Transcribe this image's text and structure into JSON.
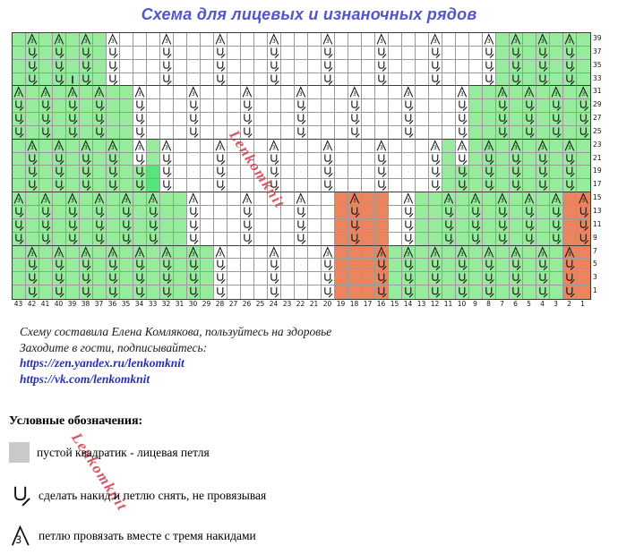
{
  "title": "Схема для лицевых и изнаночных рядов",
  "watermark_text": "Lenkomknit",
  "grid": {
    "code_map": {
      ".": "white empty",
      "g": "green empty",
      "G": "bright-green empty",
      "o": "orange empty",
      "A": "white knit3tog-symbol",
      "B": "green knit3tog-symbol",
      "C": "orange knit3tog-symbol",
      "U": "white yo-slip-symbol",
      "V": "green yo-slip-symbol",
      "W": "orange yo-slip-symbol",
      "I": "green vertical-bar-mark"
    },
    "rows": [
      "gBgBgBgA...A...A...A...A...A...A...AgBgBgBg",
      "gVgVgVgU...U...U...U...U...U...U...UgVgVgVg",
      "gVgVgVgU...U...U...U...U...U...U...UgVgVgVg",
      "gVgVIVgU...U...U...U...U...U...U...UgVgVgVg",
      "BgBgBgBggA...A...A...A...A...A...AggBgBgBgB",
      "VgVgVgVggU...U...U...U...U...U...UggVgVgVgV",
      "VgVgVgVggU...U...U...U...U...U...UggVgVgVgV",
      "VgVgVgVggU...U...U...U...U...U...UggVgVgVgV",
      "gBgBgBgBgAgA...A...A...A...A...AgAgBgBgBgBg",
      "gVgVgVgVgUgU...U...U...U...U...UgUgVgVgVgVg",
      "gVgVgVgVgVGU...U...U...U...U...UgVgVgVgVgVg",
      "gVgVgVgVgVGU...U...U...U...U...UgVgVgVgVgVg",
      "BgBgBgBgBgBggA...A...A..oCoo.AggBgBgBgBgBoC",
      "VgVgVgVgVgVggU...U...U..oWoo.UggVgVgVgVgVoW",
      "VgVgVgVgVgVggU...U...U..oWoo.UggVgVgVgVgVoW",
      "VgVgVgVgVgVggU...U...U..oWoo.UggVgVgVgVgVoW",
      "gBgBgBgBgBgBgBgA...A...AoooCgBgBgBgBgBgBgCo",
      "gVgVgVgVgVgVgVgU...U...UoooWgVgVgVgVgVgVgWo",
      "gVgVgVgVgVgVgVgU...U...UoooWgVgVgVgVgVgVgWo",
      "gVgVgVgVgVgVgVgU...U...UoooWgVgVgVgVgVgVgWo"
    ],
    "row_numbers": [
      39,
      37,
      35,
      33,
      31,
      29,
      27,
      25,
      23,
      21,
      19,
      17,
      15,
      13,
      11,
      9,
      7,
      5,
      3,
      1
    ],
    "col_numbers": [
      43,
      42,
      41,
      40,
      39,
      38,
      37,
      36,
      35,
      34,
      33,
      32,
      31,
      30,
      29,
      28,
      27,
      26,
      25,
      24,
      23,
      22,
      21,
      20,
      19,
      18,
      17,
      16,
      15,
      14,
      13,
      12,
      11,
      10,
      9,
      8,
      7,
      6,
      5,
      4,
      3,
      2,
      1
    ],
    "colors": {
      "green": "#97eb9d",
      "bright_green": "#55e57c",
      "orange": "#eb8560",
      "white": "#ffffff",
      "grid_line": "#9a9a9a",
      "band_line": "#3a3a3a"
    }
  },
  "credits": {
    "line1": "Схему составила Елена Комлякова, пользуйтесь на здоровье",
    "line2": "Заходите в гости, подписывайтесь:",
    "links": [
      "https://zen.yandex.ru/lenkomknit",
      "https://vk.com/lenkomknit"
    ]
  },
  "legend": {
    "heading": "Условные обозначения:",
    "items": [
      {
        "symbol": "empty-square",
        "text": "пустой квадратик -   лицевая петля"
      },
      {
        "symbol": "yo-slip",
        "text": "сделать накид и петлю снять, не провязывая"
      },
      {
        "symbol": "knit3tog",
        "text": "петлю провязать вместе с тремя накидами"
      }
    ]
  }
}
